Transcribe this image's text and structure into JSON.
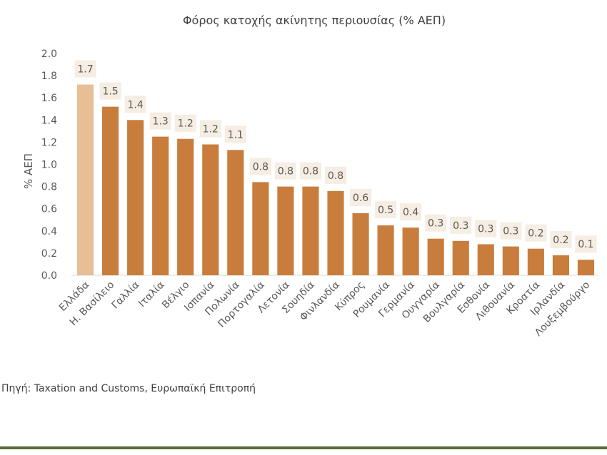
{
  "chart_data": {
    "type": "bar",
    "title": "Φόρος κατοχής ακίνητης περιουσίας (% ΑΕΠ)",
    "ylabel": "% ΑΕΠ",
    "xlabel": "",
    "ylim": [
      0,
      2.0
    ],
    "yticks": [
      "0.0",
      "0.2",
      "0.4",
      "0.6",
      "0.8",
      "1.0",
      "1.2",
      "1.4",
      "1.6",
      "1.8",
      "2.0"
    ],
    "categories": [
      "Ελλάδα",
      "Η. Βασίλειο",
      "Γαλλία",
      "Ιταλία",
      "Βέλγιο",
      "Ισπανία",
      "Πολωνία",
      "Πορτογαλία",
      "Λετονία",
      "Σουηδία",
      "Φινλανδία",
      "Κύπρος",
      "Ρουμανία",
      "Γερμανία",
      "Ουγγαρία",
      "Βουλγαρία",
      "Εσθονία",
      "Λιθουανία",
      "Κροατία",
      "Ιρλανδία",
      "Λουξεμβούργο"
    ],
    "values": [
      1.72,
      1.52,
      1.4,
      1.25,
      1.23,
      1.18,
      1.13,
      0.84,
      0.8,
      0.8,
      0.76,
      0.56,
      0.45,
      0.43,
      0.33,
      0.31,
      0.28,
      0.26,
      0.24,
      0.18,
      0.14
    ],
    "data_labels": [
      "1.7",
      "1.5",
      "1.4",
      "1.3",
      "1.2",
      "1.2",
      "1.1",
      "0.8",
      "0.8",
      "0.8",
      "0.8",
      "0.6",
      "0.5",
      "0.4",
      "0.3",
      "0.3",
      "0.3",
      "0.3",
      "0.2",
      "0.2",
      "0.1"
    ],
    "grid": false,
    "colors": {
      "bar": "#C97D3C",
      "highlight": "#E8BE94",
      "label_box": "#F6EDE3",
      "text": "#595959"
    },
    "highlight_index": 0
  },
  "source": "Πηγή: Taxation and Customs, Ευρωπαϊκή Επιτροπή"
}
